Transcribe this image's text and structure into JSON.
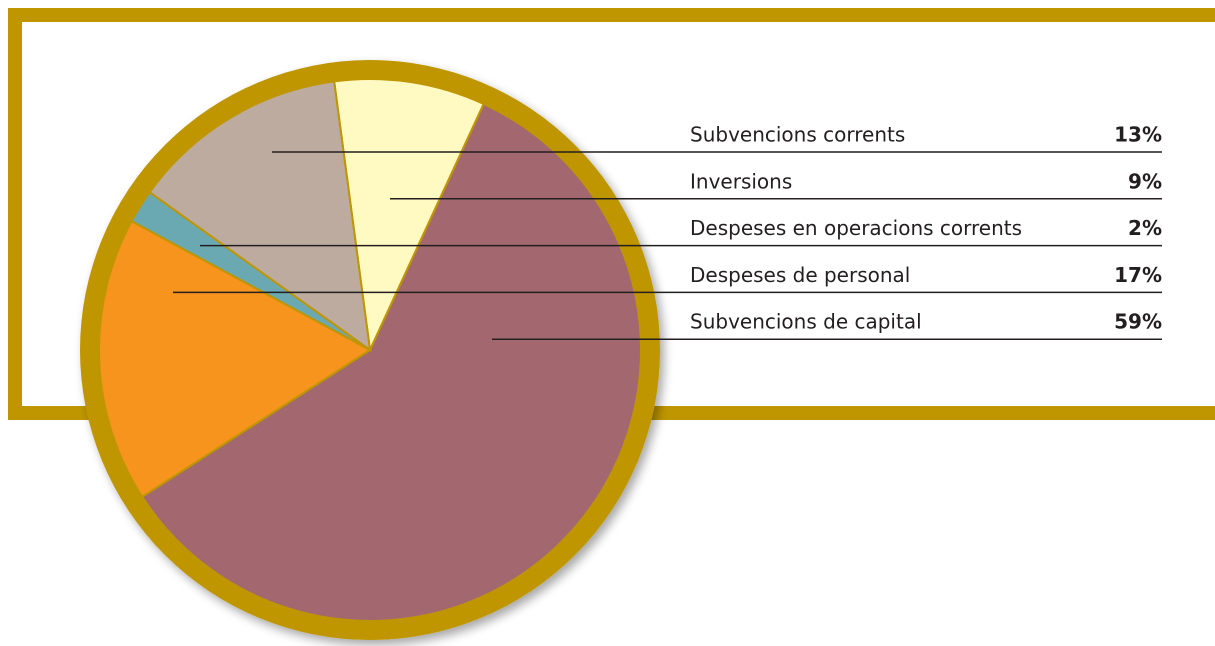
{
  "chart_data": {
    "type": "pie",
    "categories": [
      "Subvencions corrents",
      "Inversions",
      "Despeses en operacions corrents",
      "Despeses de personal",
      "Subvencions de capital"
    ],
    "values": [
      13,
      9,
      2,
      17,
      59
    ],
    "value_labels": [
      "13%",
      "9%",
      "2%",
      "17%",
      "59%"
    ],
    "colors": [
      "#bcab9e",
      "#fff9c2",
      "#6aa9b2",
      "#f7941e",
      "#a3686f"
    ]
  }
}
